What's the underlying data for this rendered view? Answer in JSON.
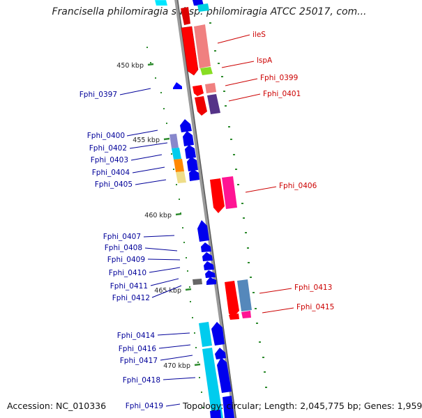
{
  "title": "Francisella philomiragia subsp. philomiragia ATCC 25017, com...",
  "footer": {
    "accession": "Accession: NC_010336",
    "topology": "Topology: circular; Length: 2,045,775 bp; Genes: 1,959"
  },
  "colors": {
    "backbone": "#888888",
    "forward_label": "#cc0000",
    "reverse_label": "#000099",
    "tick": "#2e8b2e"
  },
  "position_labels": [
    "450 kbp",
    "455 kbp",
    "460 kbp",
    "465 kbp",
    "470 kbp"
  ],
  "forward_genes": [
    "ileS",
    "lspA",
    "Fphi_0399",
    "Fphi_0401",
    "Fphi_0406",
    "Fphi_0413",
    "Fphi_0415"
  ],
  "reverse_genes": [
    "Fphi_0397",
    "Fphi_0400",
    "Fphi_0402",
    "Fphi_0403",
    "Fphi_0404",
    "Fphi_0405",
    "Fphi_0407",
    "Fphi_0408",
    "Fphi_0409",
    "Fphi_0410",
    "Fphi_0411",
    "Fphi_0412",
    "Fphi_0414",
    "Fphi_0416",
    "Fphi_0417",
    "Fphi_0418",
    "Fphi_0419"
  ]
}
